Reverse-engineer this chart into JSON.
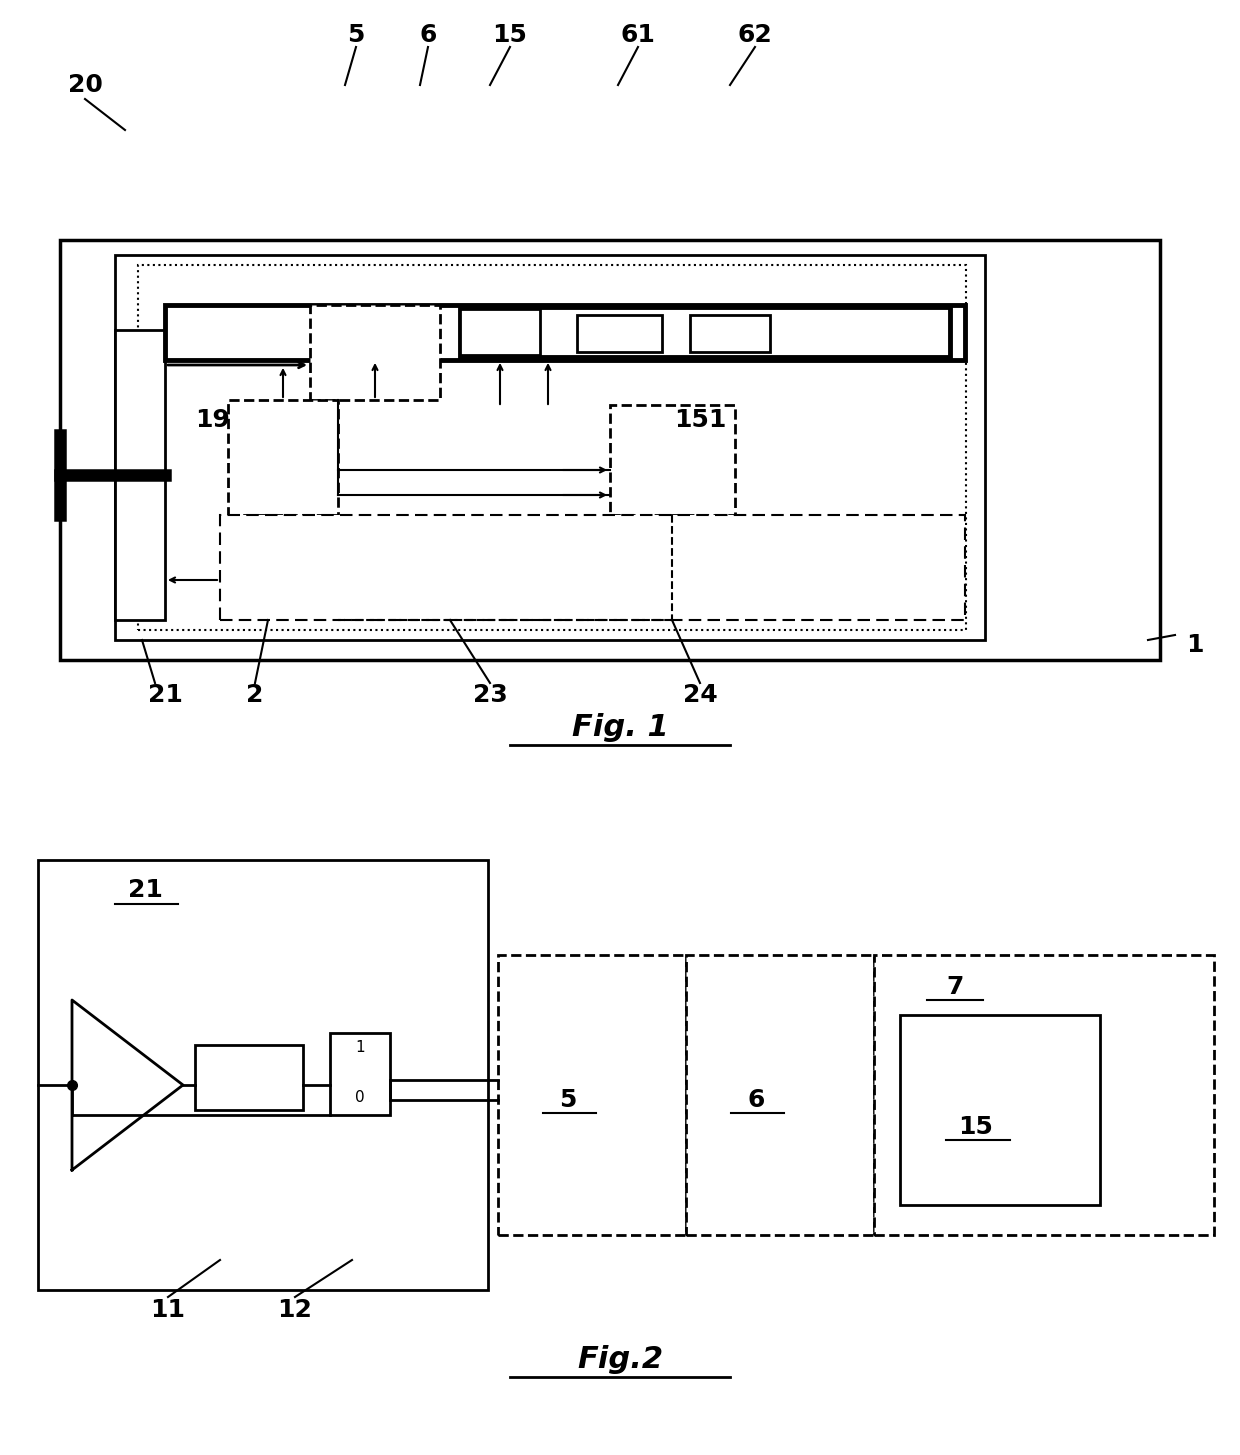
{
  "bg": "#ffffff",
  "lw_thick": 2.5,
  "lw_med": 2.0,
  "lw_thin": 1.5,
  "label_fs": 18,
  "caption_fs": 22,
  "fig1_caption": "Fig. 1",
  "fig2_caption": "Fig.2"
}
